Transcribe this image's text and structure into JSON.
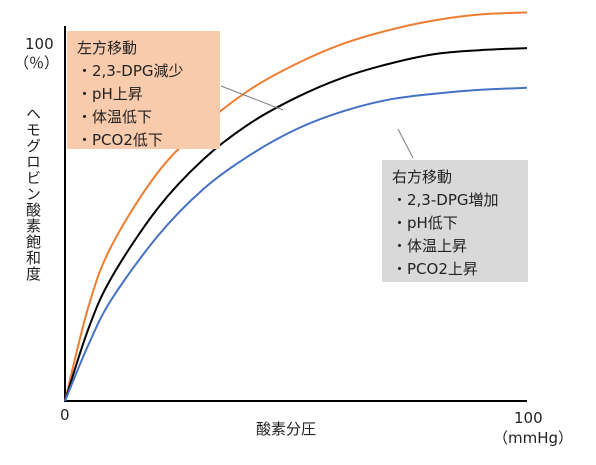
{
  "chart_data": {
    "type": "line",
    "xlabel": "酸素分圧",
    "ylabel": "ヘモグロビン酸素飽和度",
    "x_tick_min": "0",
    "x_tick_max": "100",
    "x_unit": "（mmHg）",
    "y_tick_max": "100",
    "y_unit": "（％）",
    "xlim": [
      0,
      100
    ],
    "ylim": [
      0,
      100
    ],
    "series": [
      {
        "color": "#ed7d31",
        "x": [
          0,
          5,
          10,
          20,
          30,
          40,
          50,
          60,
          70,
          80,
          90,
          100
        ],
        "values": [
          0,
          23.5,
          39,
          57.5,
          69.5,
          78.5,
          85,
          90,
          93.5,
          96,
          97.5,
          98
        ]
      },
      {
        "color": "#000000",
        "x": [
          0,
          5,
          10,
          20,
          30,
          40,
          50,
          60,
          70,
          80,
          90,
          100
        ],
        "values": [
          0,
          18,
          31,
          48.5,
          61,
          70,
          76.5,
          81.5,
          85,
          87.5,
          88.5,
          89
        ]
      },
      {
        "color": "#4472c4",
        "x": [
          0,
          5,
          10,
          20,
          30,
          40,
          50,
          60,
          70,
          80,
          90,
          100
        ],
        "values": [
          0,
          14,
          25.5,
          41.5,
          53.5,
          62,
          68.5,
          73,
          76,
          77.5,
          78.5,
          79
        ]
      }
    ],
    "annotations": [
      {
        "id": "left",
        "title": "左方移動",
        "items": [
          "・2,3-DPG減少",
          "・pH上昇",
          "・体温低下",
          "・PCO2低下"
        ],
        "color": "#f8cbad"
      },
      {
        "id": "right",
        "title": "右方移動",
        "items": [
          "・2,3-DPG増加",
          "・pH低下",
          "・体温上昇",
          "・PCO2上昇"
        ],
        "color": "#d9d9d9"
      }
    ]
  }
}
